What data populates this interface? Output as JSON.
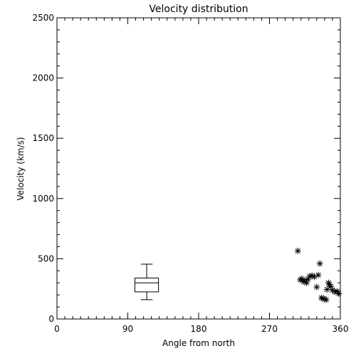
{
  "chart_data": {
    "type": "scatter",
    "title": "Velocity distribution",
    "xlabel": "Angle from north",
    "ylabel": "Velocity (km/s)",
    "xlim": [
      0,
      360
    ],
    "ylim": [
      0,
      2500
    ],
    "x_ticks": [
      0,
      90,
      180,
      270,
      360
    ],
    "y_ticks": [
      0,
      500,
      1000,
      1500,
      2000,
      2500
    ],
    "grid": false,
    "legend": "none",
    "points": [
      {
        "x": 306,
        "y": 565
      },
      {
        "x": 309,
        "y": 325
      },
      {
        "x": 311,
        "y": 335
      },
      {
        "x": 313,
        "y": 310
      },
      {
        "x": 315,
        "y": 320
      },
      {
        "x": 317,
        "y": 300
      },
      {
        "x": 319,
        "y": 330
      },
      {
        "x": 321,
        "y": 355
      },
      {
        "x": 324,
        "y": 360
      },
      {
        "x": 327,
        "y": 350
      },
      {
        "x": 330,
        "y": 265
      },
      {
        "x": 332,
        "y": 365
      },
      {
        "x": 334,
        "y": 460
      },
      {
        "x": 336,
        "y": 175
      },
      {
        "x": 338,
        "y": 170
      },
      {
        "x": 340,
        "y": 165
      },
      {
        "x": 342,
        "y": 160
      },
      {
        "x": 343,
        "y": 245
      },
      {
        "x": 345,
        "y": 300
      },
      {
        "x": 346,
        "y": 285
      },
      {
        "x": 348,
        "y": 270
      },
      {
        "x": 350,
        "y": 240
      },
      {
        "x": 353,
        "y": 225
      },
      {
        "x": 356,
        "y": 230
      },
      {
        "x": 358,
        "y": 210
      }
    ],
    "boxplot": {
      "x_center": 114,
      "x_halfwidth": 15,
      "min": 160,
      "q1": 225,
      "median": 300,
      "q3": 340,
      "max": 455
    },
    "colors": {
      "foreground": "#000000",
      "background": "#ffffff"
    }
  }
}
